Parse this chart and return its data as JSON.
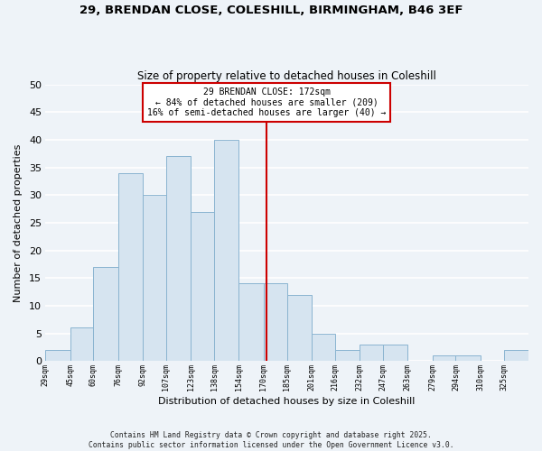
{
  "title1": "29, BRENDAN CLOSE, COLESHILL, BIRMINGHAM, B46 3EF",
  "title2": "Size of property relative to detached houses in Coleshill",
  "xlabel": "Distribution of detached houses by size in Coleshill",
  "ylabel": "Number of detached properties",
  "annotation_line1": "29 BRENDAN CLOSE: 172sqm",
  "annotation_line2": "← 84% of detached houses are smaller (209)",
  "annotation_line3": "16% of semi-detached houses are larger (40) →",
  "bin_edges": [
    29,
    45,
    60,
    76,
    92,
    107,
    123,
    138,
    154,
    170,
    185,
    201,
    216,
    232,
    247,
    263,
    279,
    294,
    310,
    325,
    341
  ],
  "bar_heights": [
    2,
    6,
    17,
    34,
    30,
    37,
    27,
    40,
    14,
    14,
    12,
    5,
    2,
    3,
    3,
    0,
    1,
    1,
    0,
    2
  ],
  "bar_color": "#d6e4f0",
  "bar_edgecolor": "#8ab4d0",
  "vline_x": 172,
  "vline_color": "#cc0000",
  "ylim": [
    0,
    50
  ],
  "yticks": [
    0,
    5,
    10,
    15,
    20,
    25,
    30,
    35,
    40,
    45,
    50
  ],
  "plot_bg_color": "#eef3f8",
  "fig_bg_color": "#eef3f8",
  "grid_color": "#ffffff",
  "annotation_box_facecolor": "#ffffff",
  "annotation_box_edgecolor": "#cc0000",
  "footer_line1": "Contains HM Land Registry data © Crown copyright and database right 2025.",
  "footer_line2": "Contains public sector information licensed under the Open Government Licence v3.0."
}
